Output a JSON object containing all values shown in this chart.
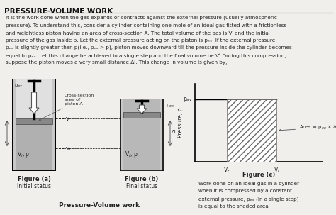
{
  "title": "PRESSURE-VOLUME WORK",
  "body_lines": [
    "It is the work done when the gas expands or contracts against the external pressure (usually atmospheric",
    "pressure). To understand this, consider a cylinder containing one mole of an ideal gas fitted with a frictionless",
    "and weightless piston having an area of cross-section A. The total volume of the gas is Vᴵ and the initial",
    "pressure of the gas inside p. Let the external pressure acting on the piston is pₑₓ. If the external pressure",
    "pₑₓ is slightly greater than p(i.e., pₑₓ > p), piston moves downward till the pressure inside the cylinder becomes",
    "equal to pₑₓ. Let this change be achieved in a single step and the final volume be Vᶠ During this compression,",
    "suppose the piston moves a very small distance Δl. This change in volume is given by,"
  ],
  "fig_a_label": "Figure (a)",
  "fig_a_sub": "Initial status",
  "fig_b_label": "Figure (b)",
  "fig_b_sub": "Final status",
  "fig_c_label": "Figure (c)",
  "fig_c_caption_lines": [
    "Work done on an ideal gas in a cylinder",
    "when it is compressed by a constant",
    "external pressure, pₑₓ (in a single step)",
    "is equal to the shaded area"
  ],
  "bottom_label": "Pressure-Volume work",
  "bg_color": "#f0efeb",
  "title_color": "#111111",
  "text_color": "#222222"
}
